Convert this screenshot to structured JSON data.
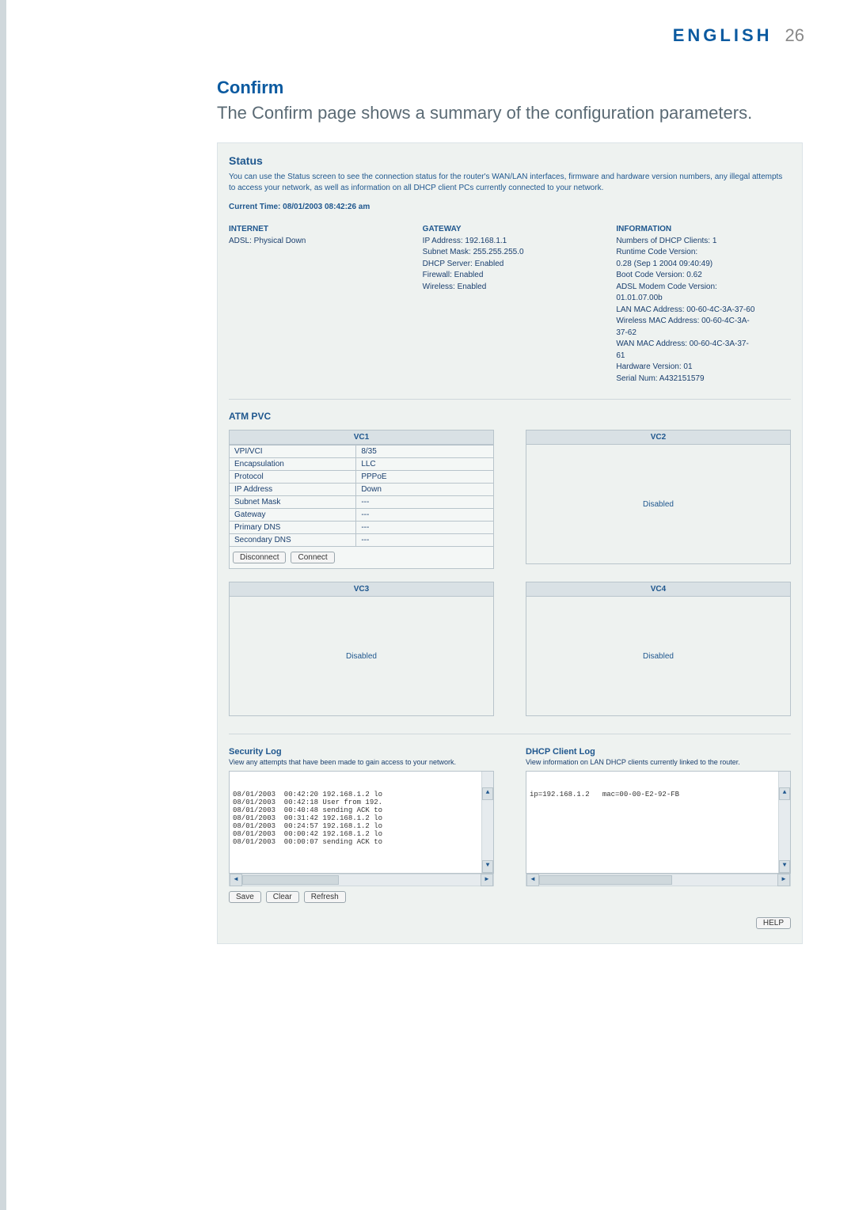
{
  "header": {
    "language": "ENGLISH",
    "page_number": "26"
  },
  "section": {
    "heading": "Confirm",
    "intro": "The Confirm page shows a summary of the configuration parameters."
  },
  "status": {
    "title": "Status",
    "description": "You can use the Status screen to see the connection status for the router's WAN/LAN interfaces, firmware and hardware version numbers, any illegal attempts to access your network, as well as information on all DHCP client PCs currently connected to your network.",
    "current_time_label": "Current Time: 08/01/2003 08:42:26 am",
    "internet": {
      "heading": "INTERNET",
      "line1": "ADSL:   Physical Down"
    },
    "gateway": {
      "heading": "GATEWAY",
      "lines": [
        "IP Address:  192.168.1.1",
        "Subnet Mask:  255.255.255.0",
        "DHCP Server:  Enabled",
        "Firewall:  Enabled",
        "Wireless:  Enabled"
      ]
    },
    "information": {
      "heading": "INFORMATION",
      "lines": [
        "Numbers of DHCP Clients:  1",
        "Runtime Code Version:",
        "  0.28 (Sep 1 2004 09:40:49)",
        "Boot Code Version:  0.62",
        "ADSL Modem Code Version:",
        "01.01.07.00b",
        "LAN MAC Address: 00-60-4C-3A-37-60",
        "Wireless MAC Address: 00-60-4C-3A-",
        "37-62",
        "WAN MAC Address: 00-60-4C-3A-37-",
        "61",
        "Hardware Version:  01",
        "Serial Num:   A432151579"
      ]
    }
  },
  "atm": {
    "title": "ATM PVC",
    "vc1_label": "VC1",
    "vc2_label": "VC2",
    "vc3_label": "VC3",
    "vc4_label": "VC4",
    "disabled_text": "Disabled",
    "disconnect_btn": "Disconnect",
    "connect_btn": "Connect",
    "vc1_rows": [
      [
        "VPI/VCI",
        "8/35"
      ],
      [
        "Encapsulation",
        "LLC"
      ],
      [
        "Protocol",
        "PPPoE"
      ],
      [
        "IP Address",
        "Down"
      ],
      [
        "Subnet Mask",
        "---"
      ],
      [
        "Gateway",
        "---"
      ],
      [
        "Primary DNS",
        "---"
      ],
      [
        "Secondary DNS",
        "---"
      ]
    ]
  },
  "security_log": {
    "title": "Security Log",
    "subtitle": "View any attempts that have been made to gain access to your network.",
    "lines": [
      "08/01/2003  00:42:20 192.168.1.2 lo",
      "08/01/2003  00:42:18 User from 192.",
      "08/01/2003  00:40:48 sending ACK to",
      "08/01/2003  00:31:42 192.168.1.2 lo",
      "08/01/2003  00:24:57 192.168.1.2 lo",
      "08/01/2003  00:00:42 192.168.1.2 lo",
      "08/01/2003  00:00:07 sending ACK to"
    ],
    "save_btn": "Save",
    "clear_btn": "Clear",
    "refresh_btn": "Refresh"
  },
  "dhcp_log": {
    "title": "DHCP Client Log",
    "subtitle": "View information on LAN DHCP clients currently linked to the router.",
    "lines": [
      "ip=192.168.1.2   mac=00-00-E2-92-FB"
    ]
  },
  "help_btn": "HELP",
  "scroll_thumb_widths": {
    "sec": "40%",
    "dhcp": "55%"
  }
}
